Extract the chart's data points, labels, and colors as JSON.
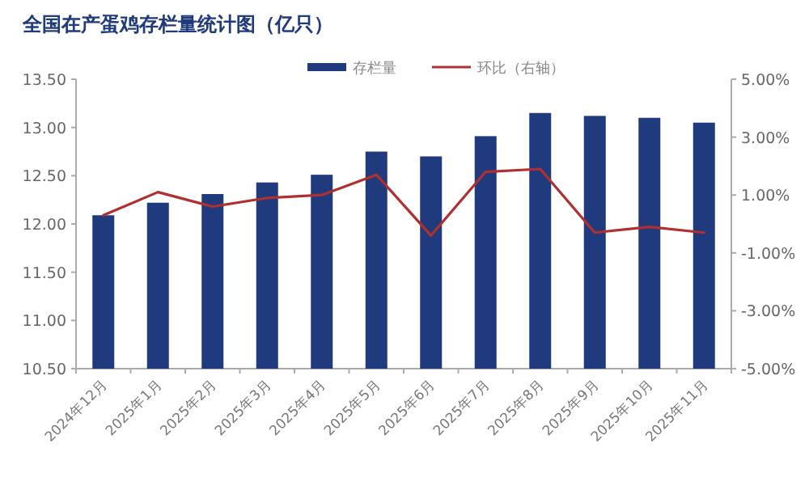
{
  "chart_data": {
    "type": "bar",
    "title": "全国在产蛋鸡存栏量统计图（亿只）",
    "categories": [
      "2024年12月",
      "2025年1月",
      "2025年2月",
      "2025年3月",
      "2025年4月",
      "2025年5月",
      "2025年6月",
      "2025年7月",
      "2025年8月",
      "2025年9月",
      "2025年10月",
      "2025年11月"
    ],
    "series": [
      {
        "name": "存栏量",
        "color": "#1f3a7d",
        "values": [
          12.09,
          12.22,
          12.31,
          12.43,
          12.51,
          12.75,
          12.7,
          12.91,
          13.15,
          13.12,
          13.1,
          13.05
        ]
      },
      {
        "name": "环比（右轴）",
        "type": "line",
        "axis": "y2",
        "color": "#b03030",
        "values": [
          0.3,
          1.1,
          0.6,
          0.9,
          1.0,
          1.7,
          -0.4,
          1.8,
          1.9,
          -0.3,
          -0.1,
          -0.3
        ]
      }
    ],
    "ylim": [
      10.5,
      13.5
    ],
    "yticks": [
      {
        "value": 10.5,
        "label": "10.50"
      },
      {
        "value": 11,
        "label": "11.00"
      },
      {
        "value": 11.5,
        "label": "11.50"
      },
      {
        "value": 12,
        "label": "12.00"
      },
      {
        "value": 12.5,
        "label": "12.50"
      },
      {
        "value": 13,
        "label": "13.00"
      },
      {
        "value": 13.5,
        "label": "13.50"
      }
    ],
    "y2lim": [
      -5,
      5
    ],
    "y2ticks": [
      {
        "value": -5,
        "label": "-5.00%"
      },
      {
        "value": -3,
        "label": "-3.00%"
      },
      {
        "value": -1,
        "label": "-1.00%"
      },
      {
        "value": 1,
        "label": "1.00%"
      },
      {
        "value": 3,
        "label": "3.00%"
      },
      {
        "value": 5,
        "label": "5.00%"
      }
    ],
    "legend": "top",
    "grid": false
  }
}
